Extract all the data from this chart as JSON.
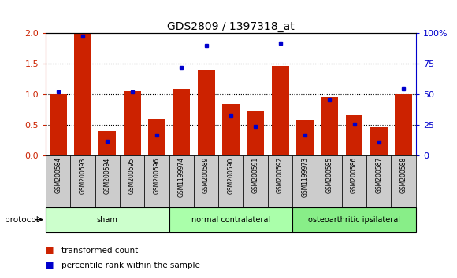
{
  "title": "GDS2809 / 1397318_at",
  "categories": [
    "GSM200584",
    "GSM200593",
    "GSM200594",
    "GSM200595",
    "GSM200596",
    "GSM1199974",
    "GSM200589",
    "GSM200590",
    "GSM200591",
    "GSM200592",
    "GSM1199973",
    "GSM200585",
    "GSM200586",
    "GSM200587",
    "GSM200588"
  ],
  "red_bars": [
    1.0,
    2.0,
    0.4,
    1.05,
    0.6,
    1.1,
    1.4,
    0.85,
    0.73,
    1.47,
    0.58,
    0.95,
    0.67,
    0.47,
    1.0
  ],
  "blue_dots": [
    52,
    98,
    12,
    52,
    17,
    72,
    90,
    33,
    24,
    92,
    17,
    46,
    26,
    11,
    55
  ],
  "ylim_left": [
    0,
    2
  ],
  "ylim_right": [
    0,
    100
  ],
  "yticks_left": [
    0,
    0.5,
    1.0,
    1.5,
    2.0
  ],
  "yticks_right": [
    0,
    25,
    50,
    75,
    100
  ],
  "groups": [
    {
      "label": "sham",
      "start": 0,
      "end": 5,
      "color": "#ccffcc"
    },
    {
      "label": "normal contralateral",
      "start": 5,
      "end": 10,
      "color": "#aaffaa"
    },
    {
      "label": "osteoarthritic ipsilateral",
      "start": 10,
      "end": 15,
      "color": "#88ee88"
    }
  ],
  "protocol_label": "protocol",
  "bar_color": "#cc2200",
  "dot_color": "#0000cc",
  "left_axis_color": "#cc2200",
  "right_axis_color": "#0000cc",
  "legend_items": [
    "transformed count",
    "percentile rank within the sample"
  ],
  "background_color": "#ffffff",
  "tick_label_bg": "#cccccc",
  "group_border_color": "#000000"
}
